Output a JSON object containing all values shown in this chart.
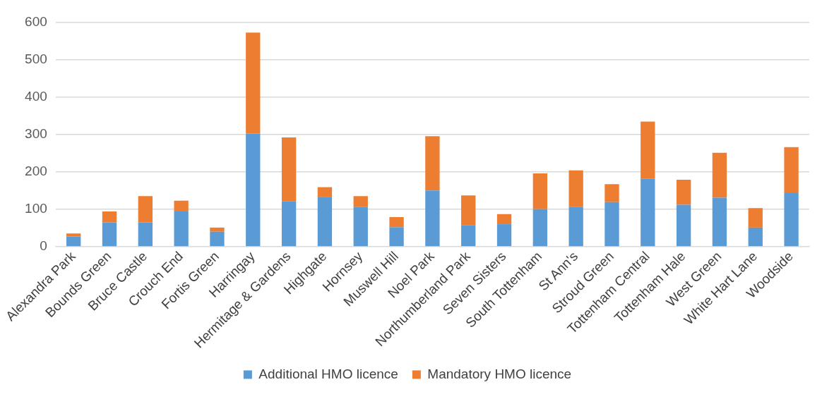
{
  "chart_data": {
    "type": "bar",
    "stacked": true,
    "categories": [
      "Alexandra Park",
      "Bounds Green",
      "Bruce Castle",
      "Crouch End",
      "Fortis Green",
      "Harringay",
      "Hermitage & Gardens",
      "Highgate",
      "Hornsey",
      "Muswell Hill",
      "Noel Park",
      "Northumberland Park",
      "Seven Sisters",
      "South Tottenham",
      "St Ann's",
      "Stroud Green",
      "Tottenham Central",
      "Tottenham Hale",
      "West Green",
      "White Hart Lane",
      "Woodside"
    ],
    "series": [
      {
        "name": "Additional HMO licence",
        "color": "#5b9bd5",
        "values": [
          27,
          65,
          65,
          94,
          40,
          302,
          121,
          132,
          107,
          52,
          150,
          57,
          60,
          100,
          107,
          119,
          181,
          112,
          131,
          51,
          143
        ]
      },
      {
        "name": "Mandatory HMO licence",
        "color": "#ed7d31",
        "values": [
          8,
          29,
          70,
          29,
          11,
          270,
          171,
          27,
          28,
          27,
          145,
          80,
          27,
          96,
          97,
          48,
          153,
          67,
          120,
          52,
          123
        ]
      }
    ],
    "ylim": [
      0,
      600
    ],
    "yticks": [
      0,
      100,
      200,
      300,
      400,
      500,
      600
    ],
    "grid": "y",
    "legend": "bottom"
  }
}
